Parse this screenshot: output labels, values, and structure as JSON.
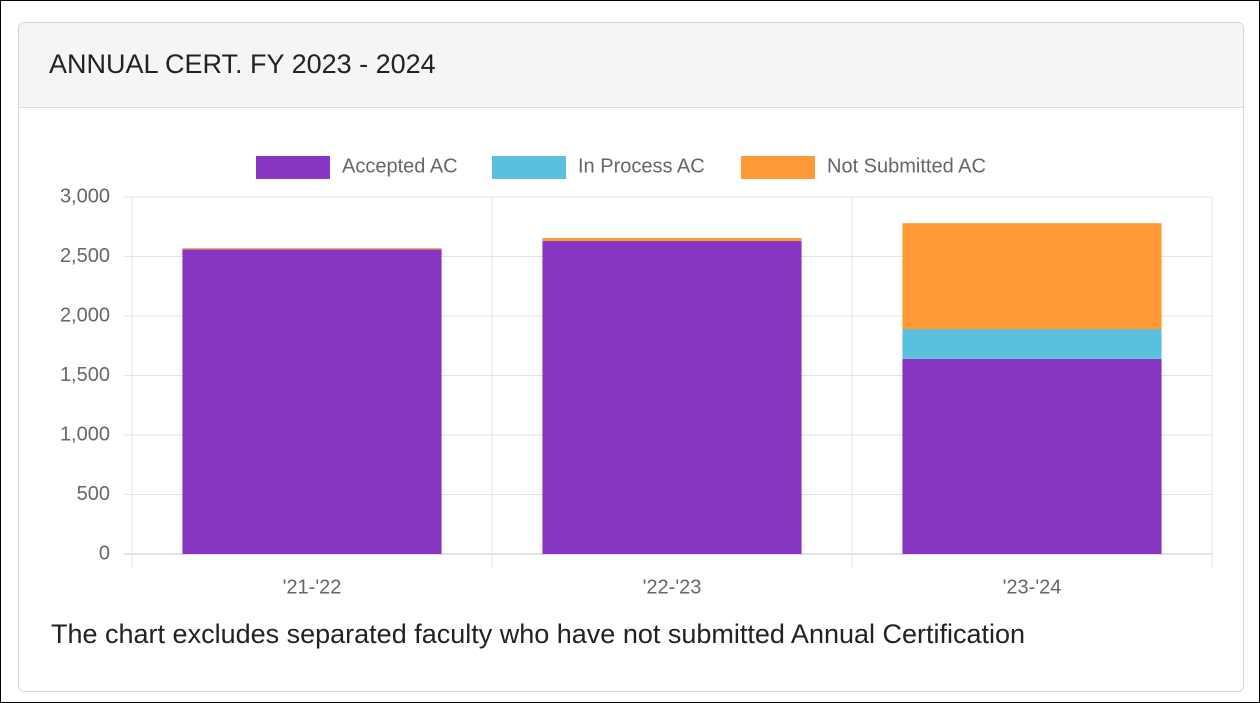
{
  "header": {
    "title": "ANNUAL CERT. FY 2023 - 2024"
  },
  "chart_data": {
    "type": "stacked_bar",
    "categories": [
      "'21-'22",
      "'22-'23",
      "'23-'24"
    ],
    "series": [
      {
        "name": "Accepted AC",
        "color": "#8a36c5",
        "values": [
          2560,
          2630,
          1640
        ]
      },
      {
        "name": "In Process AC",
        "color": "#5bc0de",
        "values": [
          0,
          0,
          250
        ]
      },
      {
        "name": "Not Submitted AC",
        "color": "#ff9a36",
        "values": [
          10,
          25,
          890
        ]
      }
    ],
    "ylim": [
      0,
      3000
    ],
    "yticks": [
      0,
      500,
      {
        "value": 1000,
        "label": "1,000"
      },
      {
        "value": 1500,
        "label": "1,500"
      },
      {
        "value": 2000,
        "label": "2,000"
      },
      {
        "value": 2500,
        "label": "2,500"
      },
      {
        "value": 3000,
        "label": "3,000"
      }
    ],
    "grid": true,
    "legend": "top"
  },
  "note": "The chart excludes separated faculty who have not submitted Annual Certification"
}
